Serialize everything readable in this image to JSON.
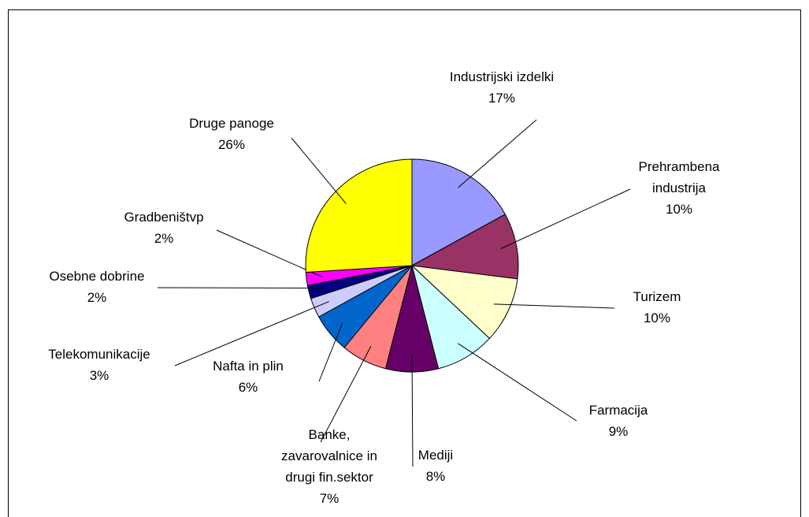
{
  "chart_data": {
    "type": "pie",
    "categories": [
      "Industrijski izdelki",
      "Prehrambena industrija",
      "Turizem",
      "Farmacija",
      "Mediji",
      "Banke, zavarovalnice in drugi fin.sektor",
      "Nafta in plin",
      "Telekomunikacije",
      "Osebne dobrine",
      "Gradbeništvp",
      "Druge panoge"
    ],
    "values": [
      17,
      10,
      10,
      9,
      8,
      7,
      6,
      3,
      2,
      2,
      26
    ],
    "value_labels": [
      "17%",
      "10%",
      "10%",
      "9%",
      "8%",
      "7%",
      "6%",
      "3%",
      "2%",
      "2%",
      "26%"
    ],
    "colors": [
      "#9999ff",
      "#993366",
      "#ffffcc",
      "#ccffff",
      "#660066",
      "#ff8080",
      "#0066cc",
      "#ccccff",
      "#000080",
      "#ff00ff",
      "#ffff00"
    ]
  }
}
